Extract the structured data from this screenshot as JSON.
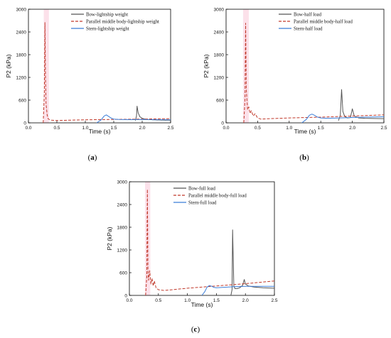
{
  "colors": {
    "bow": "#555555",
    "parallel": "#c0392b",
    "stern": "#3b7dd8",
    "shade": "#f9c8d8"
  },
  "chart_data": [
    {
      "type": "line",
      "panel_label_prefix": "(",
      "panel_letter": "a",
      "panel_label_suffix": ")",
      "xlabel": "Time (s)",
      "ylabel": "P2 (kPa)",
      "xlim": [
        0,
        2.5
      ],
      "ylim": [
        0,
        3000
      ],
      "xticks": [
        "0.0",
        "0.5",
        "1.0",
        "1.5",
        "2.0",
        "2.5"
      ],
      "yticks": [
        "0",
        "600",
        "1200",
        "1800",
        "2400",
        "3000"
      ],
      "grid": false,
      "legend_position": "top-right",
      "series": [
        {
          "name": "Bow-lightship weight",
          "style": "solid",
          "color": "#555555",
          "x": [
            1.88,
            1.9,
            1.91,
            1.93,
            1.96,
            2.0,
            2.05,
            2.1,
            2.2,
            2.3,
            2.4,
            2.5
          ],
          "y": [
            60,
            180,
            440,
            260,
            160,
            120,
            100,
            90,
            80,
            75,
            70,
            70
          ]
        },
        {
          "name": "Parallel middle body-lightship weight",
          "style": "dashed",
          "color": "#c0392b",
          "x": [
            0.26,
            0.28,
            0.29,
            0.3,
            0.31,
            0.33,
            0.35,
            0.4,
            0.5,
            0.7,
            1.0,
            1.5,
            2.0,
            2.5
          ],
          "y": [
            0,
            800,
            2650,
            1200,
            500,
            200,
            100,
            70,
            60,
            70,
            80,
            90,
            100,
            110
          ]
        },
        {
          "name": "Stern-lightship weight",
          "style": "solid",
          "color": "#3b7dd8",
          "x": [
            1.2,
            1.28,
            1.33,
            1.37,
            1.4,
            1.45,
            1.5,
            1.6,
            1.8,
            2.0,
            2.2,
            2.5
          ],
          "y": [
            0,
            80,
            180,
            210,
            180,
            130,
            100,
            90,
            85,
            90,
            85,
            80
          ]
        }
      ]
    },
    {
      "type": "line",
      "panel_label_prefix": "(",
      "panel_letter": "b",
      "panel_label_suffix": ")",
      "xlabel": "Time (s)",
      "ylabel": "P2 (kPa)",
      "xlim": [
        0,
        2.5
      ],
      "ylim": [
        0,
        3000
      ],
      "xticks": [
        "0.0",
        "0.5",
        "1.0",
        "1.5",
        "2.0",
        "2.5"
      ],
      "yticks": [
        "0",
        "600",
        "1200",
        "1800",
        "2400",
        "3000"
      ],
      "grid": false,
      "legend_position": "top-right",
      "series": [
        {
          "name": "Bow-half load",
          "style": "solid",
          "color": "#555555",
          "x": [
            1.78,
            1.81,
            1.83,
            1.85,
            1.88,
            1.92,
            1.97,
            2.0,
            2.03,
            2.1,
            2.2,
            2.35,
            2.5
          ],
          "y": [
            60,
            200,
            880,
            300,
            170,
            130,
            140,
            370,
            180,
            130,
            120,
            115,
            110
          ]
        },
        {
          "name": "Parallel middle body-half load",
          "style": "dashed",
          "color": "#c0392b",
          "x": [
            0.28,
            0.3,
            0.31,
            0.32,
            0.34,
            0.36,
            0.38,
            0.4,
            0.43,
            0.46,
            0.5,
            0.55,
            0.7,
            1.0,
            1.5,
            2.0,
            2.5
          ],
          "y": [
            0,
            600,
            2630,
            900,
            350,
            420,
            250,
            320,
            180,
            240,
            130,
            100,
            110,
            130,
            150,
            180,
            210
          ]
        },
        {
          "name": "Stern-half load",
          "style": "solid",
          "color": "#3b7dd8",
          "x": [
            1.2,
            1.27,
            1.32,
            1.36,
            1.4,
            1.45,
            1.5,
            1.6,
            1.8,
            2.0,
            2.2,
            2.5
          ],
          "y": [
            0,
            90,
            200,
            230,
            200,
            150,
            130,
            120,
            130,
            140,
            150,
            160
          ]
        }
      ]
    },
    {
      "type": "line",
      "panel_label_prefix": "(",
      "panel_letter": "c",
      "panel_label_suffix": ")",
      "xlabel": "Time (s)",
      "ylabel": "P2 (kPa)",
      "xlim": [
        0,
        2.5
      ],
      "ylim": [
        0,
        3000
      ],
      "xticks": [
        "0.0",
        "0.5",
        "1.0",
        "1.5",
        "2.0",
        "2.5"
      ],
      "yticks": [
        "0",
        "600",
        "1200",
        "1800",
        "2400",
        "3000"
      ],
      "grid": false,
      "legend_position": "top-right",
      "series": [
        {
          "name": "Bow-full load",
          "style": "solid",
          "color": "#555555",
          "x": [
            1.75,
            1.77,
            1.78,
            1.8,
            1.82,
            1.86,
            1.9,
            1.95,
            1.98,
            2.0,
            2.05,
            2.15,
            2.3,
            2.5
          ],
          "y": [
            0,
            150,
            1730,
            250,
            180,
            180,
            200,
            260,
            420,
            300,
            250,
            220,
            200,
            190
          ]
        },
        {
          "name": "Parallel middle body-full load",
          "style": "dashed",
          "color": "#c0392b",
          "x": [
            0.28,
            0.3,
            0.31,
            0.32,
            0.33,
            0.35,
            0.37,
            0.39,
            0.41,
            0.43,
            0.46,
            0.5,
            0.6,
            0.8,
            1.0,
            1.5,
            2.0,
            2.5
          ],
          "y": [
            0,
            500,
            2800,
            700,
            400,
            650,
            300,
            450,
            250,
            380,
            200,
            150,
            130,
            160,
            190,
            250,
            310,
            380
          ]
        },
        {
          "name": "Stern-full load",
          "style": "solid",
          "color": "#3b7dd8",
          "x": [
            1.25,
            1.3,
            1.34,
            1.38,
            1.42,
            1.46,
            1.5,
            1.6,
            1.8,
            2.0,
            2.2,
            2.5
          ],
          "y": [
            0,
            100,
            220,
            260,
            240,
            210,
            200,
            210,
            230,
            240,
            240,
            240
          ]
        }
      ]
    }
  ]
}
